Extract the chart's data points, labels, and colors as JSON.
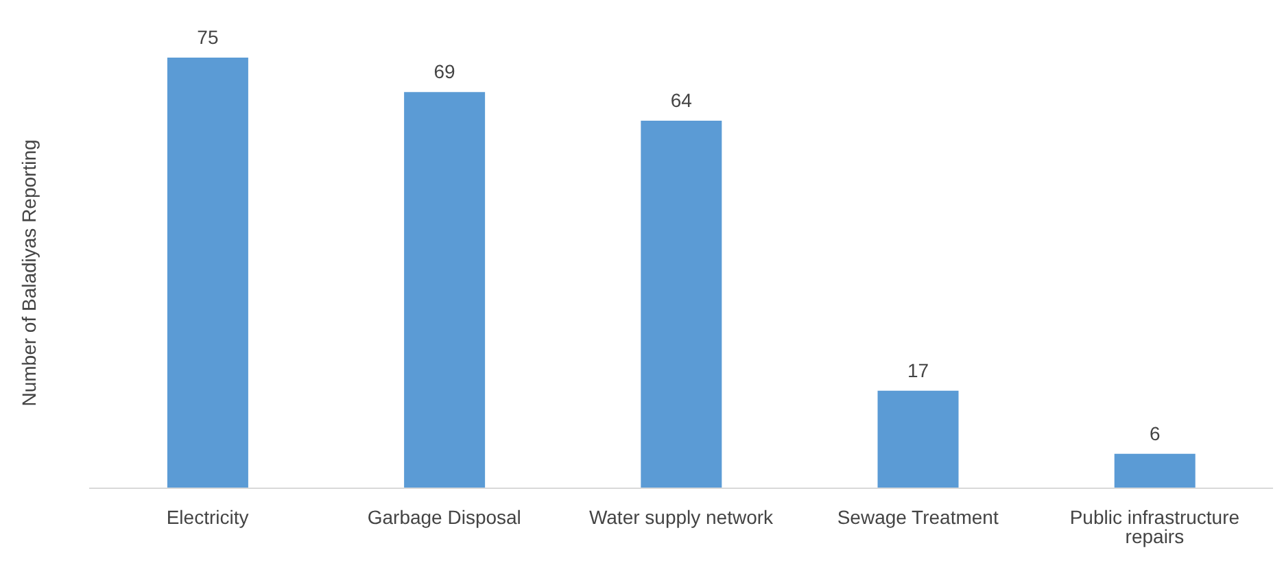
{
  "chart_data": {
    "type": "bar",
    "ylabel": "Number of Baladiyas Reporting",
    "categories": [
      "Electricity",
      "Garbage Disposal",
      "Water supply network",
      "Sewage Treatment",
      "Public infrastructure repairs"
    ],
    "values": [
      75,
      69,
      64,
      17,
      6
    ],
    "color": "#5b9bd5",
    "data_labels": true
  }
}
